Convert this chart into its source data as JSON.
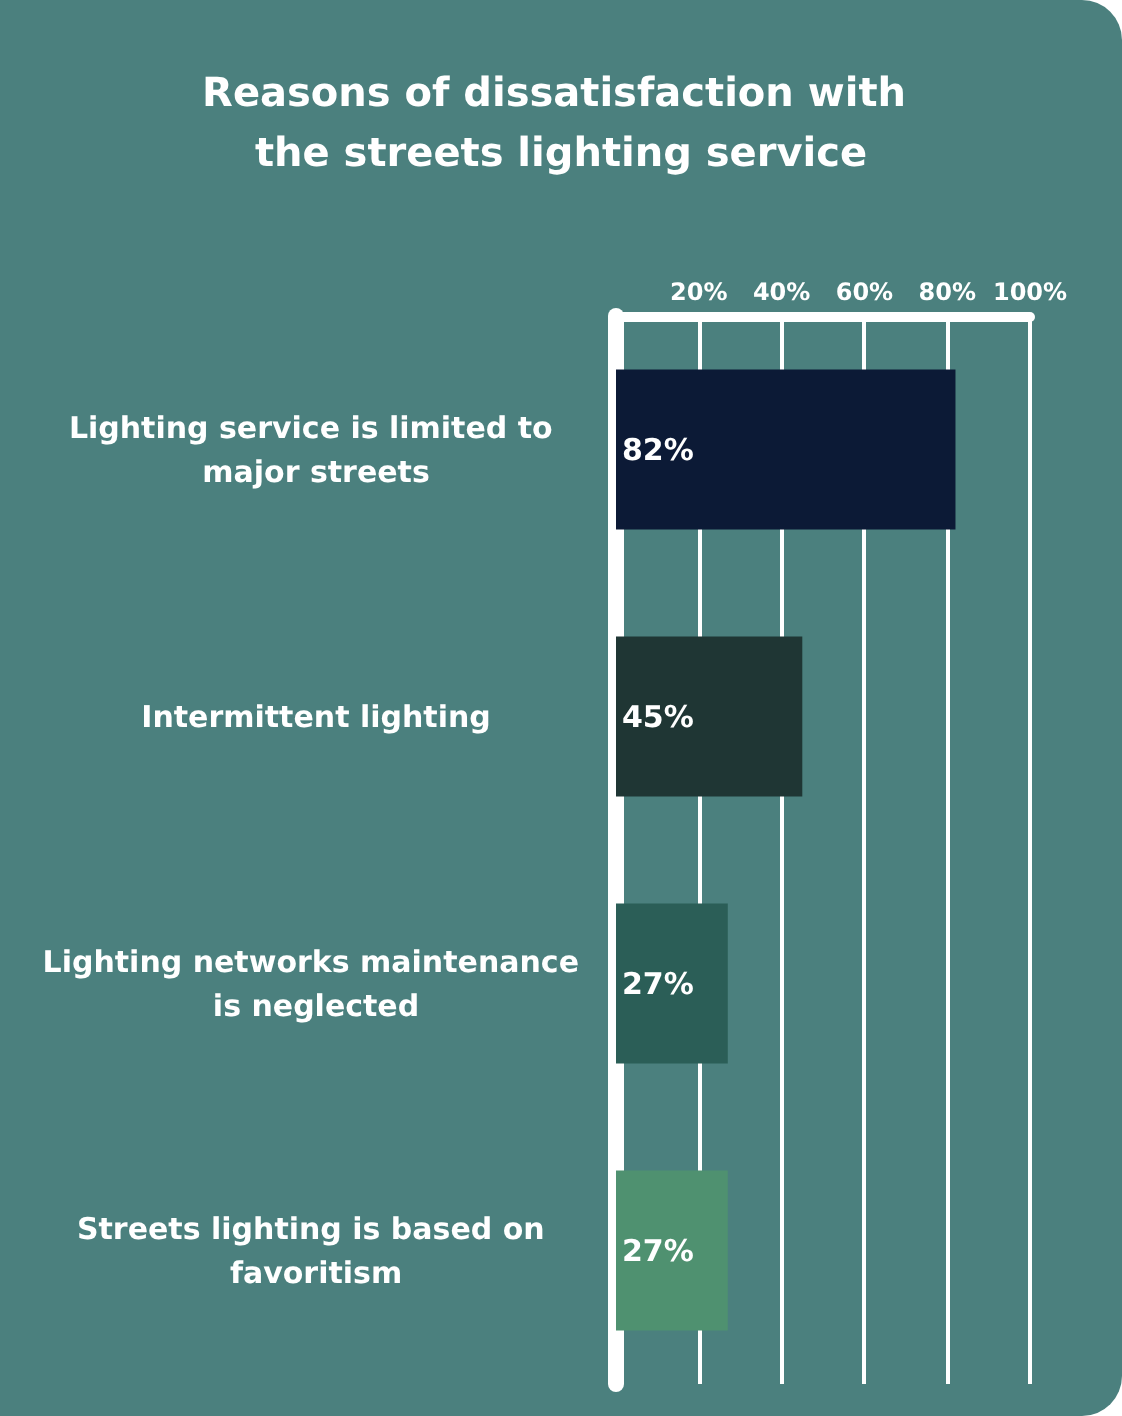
{
  "chart_data": {
    "type": "bar",
    "orientation": "horizontal",
    "title": "Reasons of dissatisfaction with the streets lighting service",
    "categories": [
      "Lighting service is limited to major streets",
      "Intermittent lighting",
      "Lighting networks maintenance is neglected",
      "Streets lighting is based on favoritism"
    ],
    "values": [
      82,
      45,
      27,
      27
    ],
    "colors": [
      "#0c1a36",
      "#1f3634",
      "#2b5e57",
      "#4f9170"
    ],
    "value_labels": [
      "82%",
      "45%",
      "27%",
      "27%"
    ],
    "xlim": [
      0,
      100
    ],
    "xticks": [
      {
        "value": 20,
        "label": "20%"
      },
      {
        "value": 40,
        "label": "40%"
      },
      {
        "value": 60,
        "label": "60%"
      },
      {
        "value": 80,
        "label": "80%"
      },
      {
        "value": 100,
        "label": "100%"
      }
    ],
    "grid": "x"
  }
}
